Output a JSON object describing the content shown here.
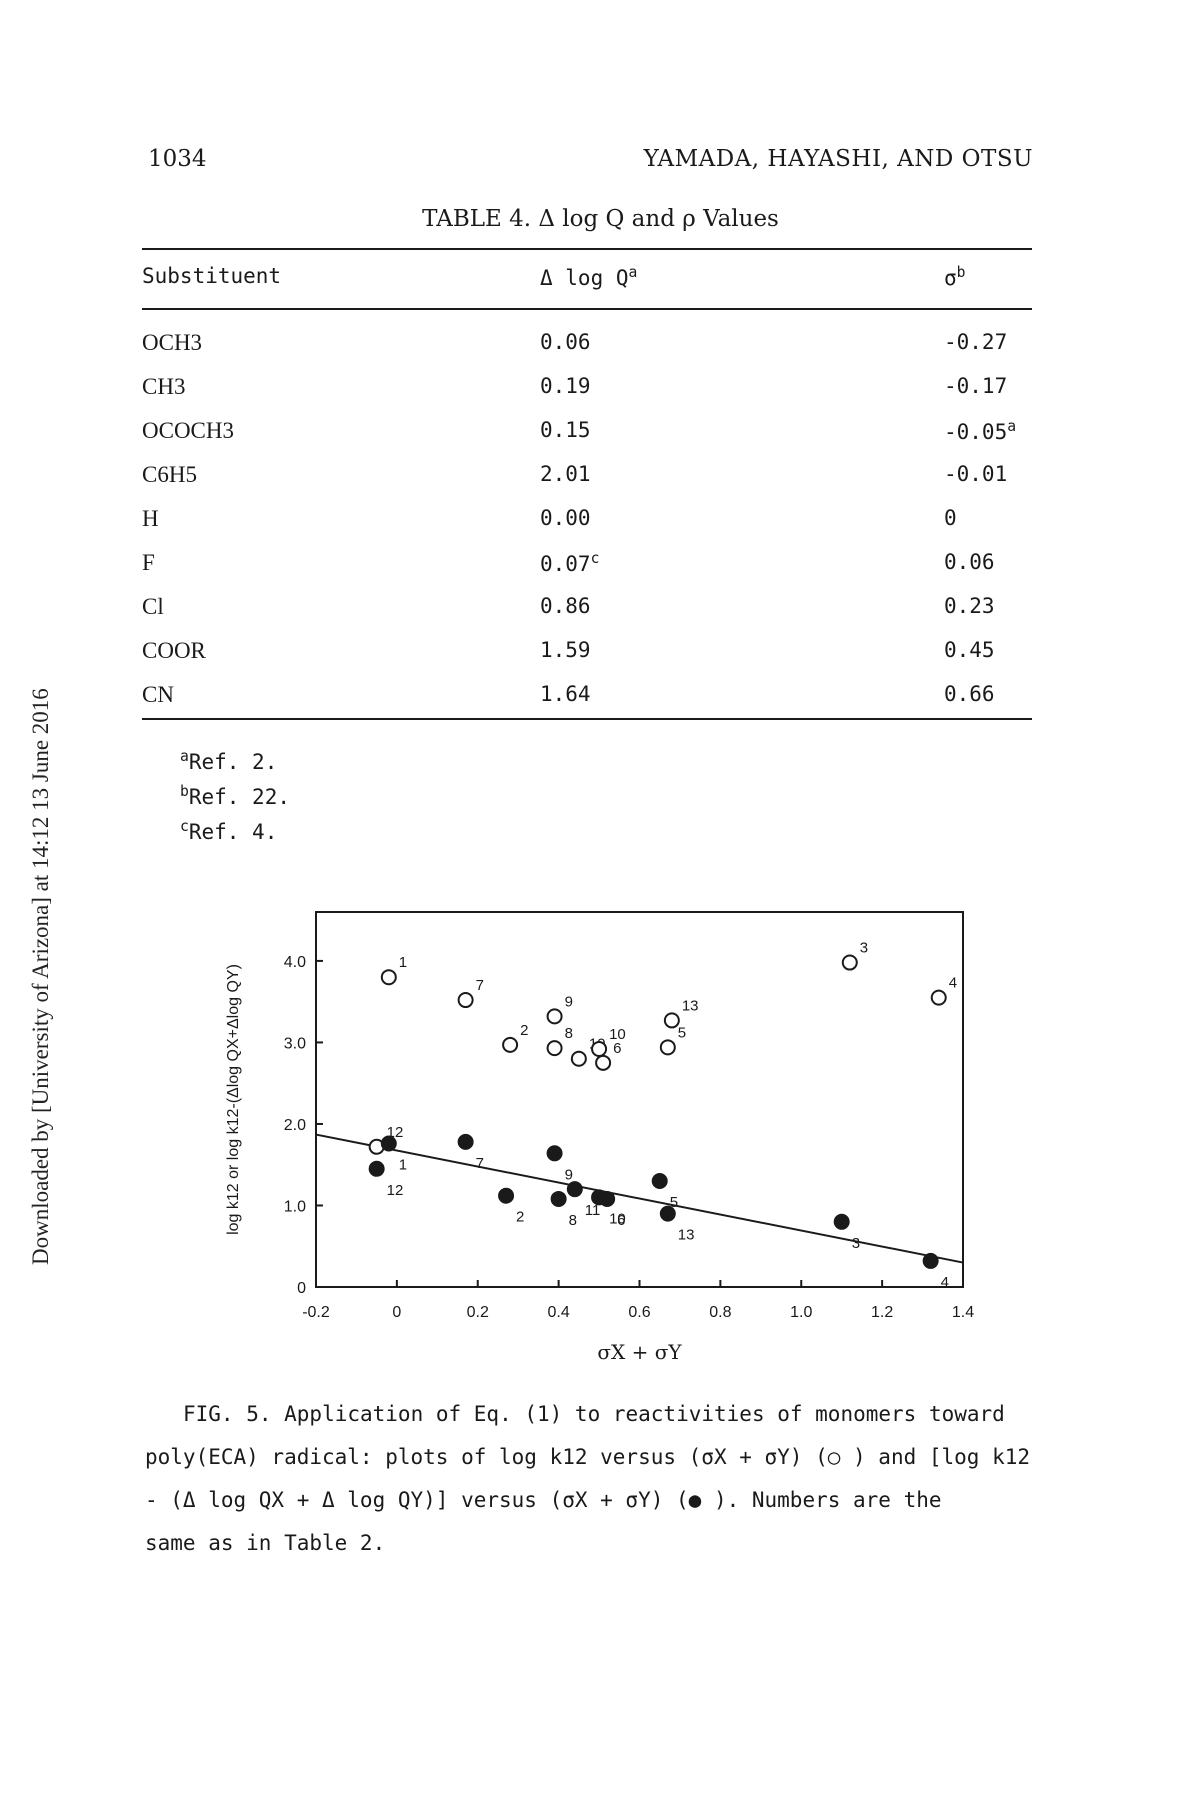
{
  "header": {
    "page_number": "1034",
    "running_title": "YAMADA, HAYASHI, AND OTSU"
  },
  "watermark": "Downloaded by [University of Arizona] at 14:12 13 June 2016",
  "table": {
    "caption": "TABLE 4.  Δ log Q and ρ Values",
    "columns": [
      "Substituent",
      "Δ log Q",
      "σ"
    ],
    "column_sups": [
      "",
      "a",
      "b"
    ],
    "rows": [
      {
        "substituent": "OCH3",
        "dlogq": "0.06",
        "dlogq_sup": "",
        "sigma": "-0.27",
        "sigma_sup": ""
      },
      {
        "substituent": "CH3",
        "dlogq": "0.19",
        "dlogq_sup": "",
        "sigma": "-0.17",
        "sigma_sup": ""
      },
      {
        "substituent": "OCOCH3",
        "dlogq": "0.15",
        "dlogq_sup": "",
        "sigma": "-0.05",
        "sigma_sup": "a"
      },
      {
        "substituent": "C6H5",
        "dlogq": "2.01",
        "dlogq_sup": "",
        "sigma": "-0.01",
        "sigma_sup": ""
      },
      {
        "substituent": "H",
        "dlogq": "0.00",
        "dlogq_sup": "",
        "sigma": "0",
        "sigma_sup": ""
      },
      {
        "substituent": "F",
        "dlogq": "0.07",
        "dlogq_sup": "c",
        "sigma": "0.06",
        "sigma_sup": ""
      },
      {
        "substituent": "Cl",
        "dlogq": "0.86",
        "dlogq_sup": "",
        "sigma": "0.23",
        "sigma_sup": ""
      },
      {
        "substituent": "COOR",
        "dlogq": "1.59",
        "dlogq_sup": "",
        "sigma": "0.45",
        "sigma_sup": ""
      },
      {
        "substituent": "CN",
        "dlogq": "1.64",
        "dlogq_sup": "",
        "sigma": "0.66",
        "sigma_sup": ""
      }
    ],
    "footnotes": [
      {
        "mark": "a",
        "text": "Ref. 2."
      },
      {
        "mark": "b",
        "text": "Ref. 22."
      },
      {
        "mark": "c",
        "text": "Ref. 4."
      }
    ]
  },
  "chart_data": {
    "type": "scatter",
    "xlabel": "σX + σY",
    "ylabel": "log k12 or log k12-(Δlog QX+Δlog QY)",
    "xlim": [
      -0.2,
      1.4
    ],
    "ylim": [
      0,
      4.6
    ],
    "xticks": [
      "-0.2",
      "0",
      "0.2",
      "0.4",
      "0.6",
      "0.8",
      "1.0",
      "1.2",
      "1.4"
    ],
    "yticks": [
      "0",
      "1.0",
      "2.0",
      "3.0",
      "4.0"
    ],
    "series": [
      {
        "marker": "open",
        "points": [
          {
            "x": -0.02,
            "y": 3.8,
            "label": "1"
          },
          {
            "x": 0.17,
            "y": 3.52,
            "label": "7"
          },
          {
            "x": 0.28,
            "y": 2.97,
            "label": "2"
          },
          {
            "x": 0.39,
            "y": 3.32,
            "label": "9"
          },
          {
            "x": 0.39,
            "y": 2.93,
            "label": "8"
          },
          {
            "x": 0.45,
            "y": 2.8,
            "label": "10"
          },
          {
            "x": 0.5,
            "y": 2.92,
            "label": "10"
          },
          {
            "x": 0.51,
            "y": 2.75,
            "label": "6"
          },
          {
            "x": 0.67,
            "y": 2.94,
            "label": "5"
          },
          {
            "x": 0.68,
            "y": 3.27,
            "label": "13"
          },
          {
            "x": 1.12,
            "y": 3.98,
            "label": "3"
          },
          {
            "x": 1.34,
            "y": 3.55,
            "label": "4"
          },
          {
            "x": -0.05,
            "y": 1.72,
            "label": "12"
          }
        ]
      },
      {
        "marker": "filled",
        "points": [
          {
            "x": -0.02,
            "y": 1.76,
            "label": "1"
          },
          {
            "x": -0.05,
            "y": 1.45,
            "label": "12"
          },
          {
            "x": 0.17,
            "y": 1.78,
            "label": "7"
          },
          {
            "x": 0.27,
            "y": 1.12,
            "label": "2"
          },
          {
            "x": 0.39,
            "y": 1.64,
            "label": "9"
          },
          {
            "x": 0.4,
            "y": 1.08,
            "label": "8"
          },
          {
            "x": 0.44,
            "y": 1.2,
            "label": "11"
          },
          {
            "x": 0.5,
            "y": 1.1,
            "label": "10"
          },
          {
            "x": 0.52,
            "y": 1.08,
            "label": "6"
          },
          {
            "x": 0.65,
            "y": 1.3,
            "label": "5"
          },
          {
            "x": 0.67,
            "y": 0.9,
            "label": "13"
          },
          {
            "x": 1.1,
            "y": 0.8,
            "label": "3"
          },
          {
            "x": 1.32,
            "y": 0.32,
            "label": "4"
          }
        ]
      }
    ],
    "regression_line": {
      "x": [
        -0.2,
        1.4
      ],
      "y": [
        1.87,
        0.3
      ]
    }
  },
  "figure_caption": {
    "line1": "FIG. 5.  Application of Eq. (1) to reactivities of monomers toward",
    "line2": "poly(ECA) radical:  plots of log k12 versus (σX + σY) (○ ) and [log k12",
    "line3": "- (Δ log QX + Δ log QY)] versus (σX + σY) (● ).  Numbers are the",
    "line4": "same as in Table 2."
  }
}
